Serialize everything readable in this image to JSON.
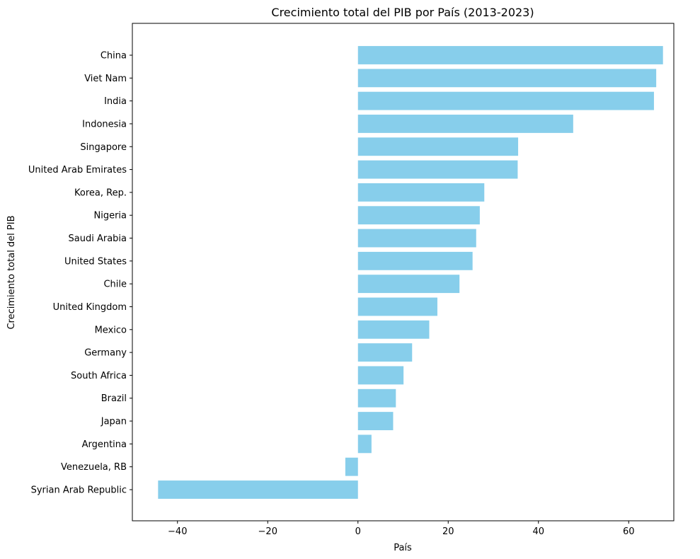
{
  "chart_data": {
    "type": "bar",
    "orientation": "horizontal",
    "title": "Crecimiento total del PIB por País (2013-2023)",
    "xlabel": "País",
    "ylabel": "Crecimiento total del PIB",
    "categories": [
      "China",
      "Viet Nam",
      "India",
      "Indonesia",
      "Singapore",
      "United Arab Emirates",
      "Korea, Rep.",
      "Nigeria",
      "Saudi Arabia",
      "United States",
      "Chile",
      "United Kingdom",
      "Mexico",
      "Germany",
      "South Africa",
      "Brazil",
      "Japan",
      "Argentina",
      "Venezuela, RB",
      "Syrian Arab Republic"
    ],
    "values": [
      67.6,
      66.1,
      65.6,
      47.7,
      35.5,
      35.4,
      28.0,
      27.0,
      26.2,
      25.4,
      22.5,
      17.6,
      15.8,
      12.0,
      10.1,
      8.4,
      7.8,
      3.0,
      -2.8,
      -44.3
    ],
    "xlim": [
      -50,
      70
    ],
    "xticks": [
      -40,
      -20,
      0,
      20,
      40,
      60
    ],
    "xtick_labels": [
      "−40",
      "−20",
      "0",
      "20",
      "40",
      "60"
    ],
    "grid": false,
    "bar_color": "#87CEEB"
  }
}
